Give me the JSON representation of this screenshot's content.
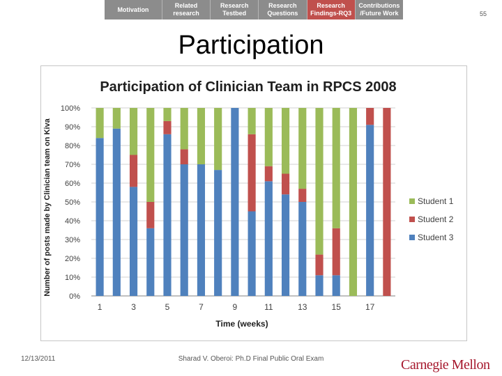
{
  "nav": {
    "tabs": [
      {
        "label": "Motivation",
        "active": false
      },
      {
        "label": "Related\nresearch",
        "active": false
      },
      {
        "label": "Research\nTestbed",
        "active": false
      },
      {
        "label": "Research\nQuestions",
        "active": false
      },
      {
        "label": "Research\nFindings-RQ3",
        "active": true
      },
      {
        "label": "Contributions\n/Future Work",
        "active": false
      }
    ]
  },
  "page_number": "55",
  "slide_title": "Participation",
  "footer": {
    "date": "12/13/2011",
    "center": "Sharad V. Oberoi: Ph.D Final Public Oral Exam",
    "logo": "Carnegie Mellon"
  },
  "colors": {
    "student1": "#9bbb59",
    "student2": "#c0504d",
    "student3": "#4f81bd",
    "nav_active": "#c0504d"
  },
  "chart_data": {
    "type": "bar",
    "stacked": "percent",
    "title": "Participation of Clinician Team in RPCS 2008",
    "xlabel": "Time (weeks)",
    "ylabel": "Number of posts made by Clinician team on Kiva",
    "ylim": [
      0,
      100
    ],
    "yticks": [
      "0%",
      "10%",
      "20%",
      "30%",
      "40%",
      "50%",
      "60%",
      "70%",
      "80%",
      "90%",
      "100%"
    ],
    "categories": [
      "1",
      "2",
      "3",
      "4",
      "5",
      "6",
      "7",
      "8",
      "9",
      "10",
      "11",
      "12",
      "13",
      "14",
      "15",
      "16",
      "17",
      "18"
    ],
    "xtick_labels": [
      "1",
      "",
      "3",
      "",
      "5",
      "",
      "7",
      "",
      "9",
      "",
      "11",
      "",
      "13",
      "",
      "15",
      "",
      "17",
      ""
    ],
    "legend_position": "right",
    "grid": true,
    "series": [
      {
        "name": "Student 3",
        "color": "#4f81bd",
        "values": [
          84,
          89,
          58,
          36,
          86,
          70,
          70,
          67,
          100,
          45,
          61,
          54,
          50,
          11,
          11,
          0,
          91,
          0
        ]
      },
      {
        "name": "Student 2",
        "color": "#c0504d",
        "values": [
          0,
          0,
          17,
          14,
          7,
          8,
          0,
          0,
          0,
          41,
          8,
          11,
          7,
          11,
          25,
          0,
          9,
          100
        ]
      },
      {
        "name": "Student 1",
        "color": "#9bbb59",
        "values": [
          16,
          11,
          25,
          50,
          7,
          22,
          30,
          33,
          0,
          14,
          31,
          35,
          43,
          78,
          64,
          100,
          0,
          0
        ]
      }
    ],
    "legend_order": [
      "Student 1",
      "Student 2",
      "Student 3"
    ]
  }
}
